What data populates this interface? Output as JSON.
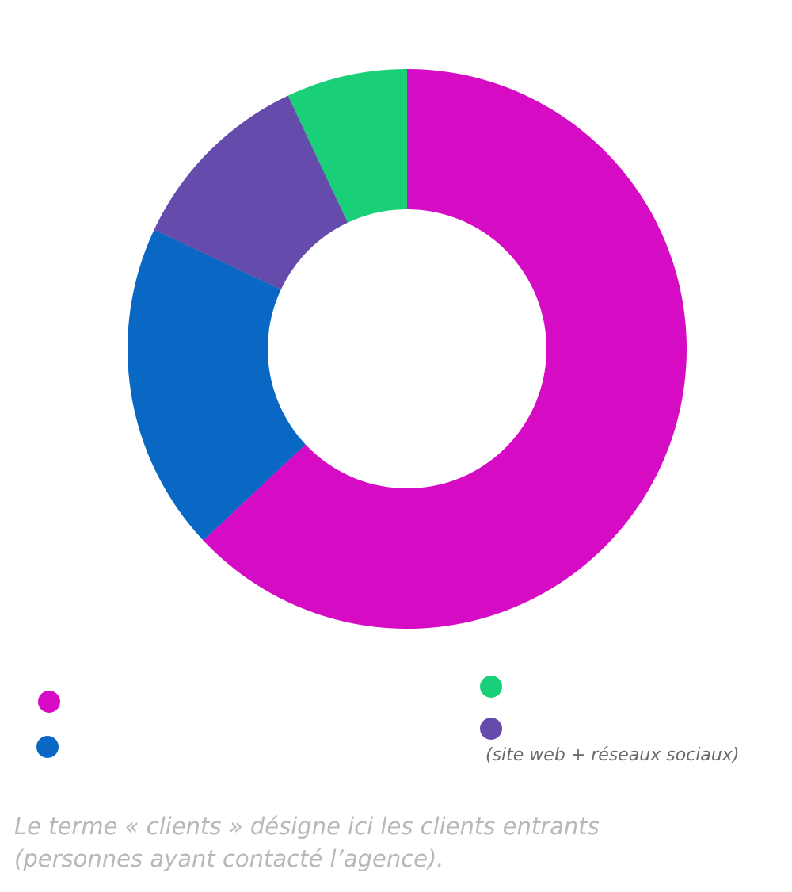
{
  "chart_data": {
    "type": "pie",
    "variant": "donut",
    "title": "",
    "slices": [
      {
        "label": "",
        "value": 63,
        "color": "#d60cc5"
      },
      {
        "label": "",
        "value": 19,
        "color": "#0868c4"
      },
      {
        "label": "",
        "value": 11,
        "color": "#654bab"
      },
      {
        "label": "",
        "value": 7,
        "color": "#19cf77"
      }
    ],
    "legend": {
      "placement": "bottom",
      "entries": [
        {
          "color": "#d60cc5",
          "note": ""
        },
        {
          "color": "#0868c4",
          "note": ""
        },
        {
          "color": "#19cf77",
          "note": ""
        },
        {
          "color": "#654bab",
          "note": "(site web + réseaux sociaux)"
        }
      ]
    }
  },
  "footnote": {
    "line1": "Le terme « clients » désigne ici les clients entrants",
    "line2": "(personnes ayant contacté l’agence)."
  }
}
